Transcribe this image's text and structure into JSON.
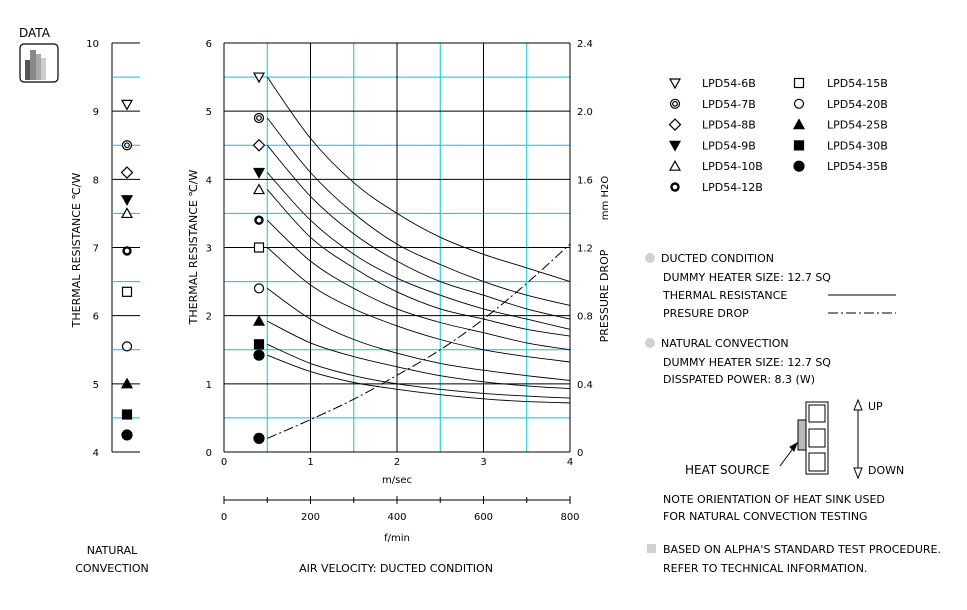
{
  "logo": {
    "label": "DATA"
  },
  "natural": {
    "footer_line1": "NATURAL",
    "footer_line2": "CONVECTION",
    "ylabel": "THERMAL  RESISTANCE  ℃/W",
    "y_ticks": [
      "4",
      "5",
      "6",
      "7",
      "8",
      "9",
      "10"
    ]
  },
  "main": {
    "ylabel_left": "THERMAL  RESISTANCE  ℃/W",
    "ylabel_right": "PRESSURE  DROP",
    "ylabel_right_unit": "mm H2O",
    "x_unit_ms": "m/sec",
    "x_unit_fmin": "f/min",
    "footer": "AIR VELOCITY:  DUCTED CONDITION",
    "y_left_ticks": [
      "0",
      "1",
      "2",
      "3",
      "4",
      "5",
      "6"
    ],
    "y_right_ticks": [
      "0",
      "0.4",
      "0.8",
      "1.2",
      "1.6",
      "2.0",
      "2.4"
    ],
    "x_ms_ticks": [
      "0",
      "1",
      "2",
      "3",
      "4"
    ],
    "x_fmin_ticks": [
      "0",
      "200",
      "400",
      "600",
      "800"
    ]
  },
  "legend": {
    "items": [
      {
        "label": "LPD54-6B",
        "marker": "triangle-down-open"
      },
      {
        "label": "LPD54-7B",
        "marker": "double-circle"
      },
      {
        "label": "LPD54-8B",
        "marker": "diamond-open"
      },
      {
        "label": "LPD54-9B",
        "marker": "triangle-down-filled"
      },
      {
        "label": "LPD54-10B",
        "marker": "triangle-up-open"
      },
      {
        "label": "LPD54-12B",
        "marker": "circle-thick"
      },
      {
        "label": "LPD54-15B",
        "marker": "square-open"
      },
      {
        "label": "LPD54-20B",
        "marker": "circle-open"
      },
      {
        "label": "LPD54-25B",
        "marker": "triangle-up-filled"
      },
      {
        "label": "LPD54-30B",
        "marker": "square-filled"
      },
      {
        "label": "LPD54-35B",
        "marker": "circle-filled"
      }
    ]
  },
  "notes": {
    "ducted_title": "DUCTED CONDITION",
    "ducted_heater": "DUMMY HEATER SIZE: 12.7 SQ",
    "thermal_resistance": "THERMAL RESISTANCE",
    "pressure_drop": "PRESURE DROP",
    "natural_title": "NATURAL CONVECTION",
    "natural_heater": "DUMMY HEATER SIZE: 12.7 SQ",
    "natural_power": "DISSPATED POWER: 8.3 (W)",
    "up": "UP",
    "down": "DOWN",
    "heat_source": "HEAT SOURCE",
    "orientation_line1": "NOTE ORIENTATION OF HEAT SINK USED",
    "orientation_line2": "FOR NATURAL CONVECTION TESTING",
    "footer_line1": "BASED ON ALPHA'S STANDARD TEST PROCEDURE.",
    "footer_line2": "REFER TO TECHNICAL INFORMATION."
  },
  "colors": {
    "grid_cyan": "#00c8d8",
    "grid_black": "#000000",
    "note_bullet": "#d0d0d0"
  },
  "chart_data": [
    {
      "type": "scatter",
      "title": "",
      "ylabel": "THERMAL  RESISTANCE  ℃/W",
      "xlabel": "",
      "ylim": [
        4,
        10
      ],
      "points": [
        {
          "series": "LPD54-6B",
          "y": 9.1
        },
        {
          "series": "LPD54-7B",
          "y": 8.5
        },
        {
          "series": "LPD54-8B",
          "y": 8.1
        },
        {
          "series": "LPD54-9B",
          "y": 7.7
        },
        {
          "series": "LPD54-10B",
          "y": 7.5
        },
        {
          "series": "LPD54-12B",
          "y": 6.95
        },
        {
          "series": "LPD54-15B",
          "y": 6.35
        },
        {
          "series": "LPD54-20B",
          "y": 5.55
        },
        {
          "series": "LPD54-25B",
          "y": 5.0
        },
        {
          "series": "LPD54-30B",
          "y": 4.55
        },
        {
          "series": "LPD54-35B",
          "y": 4.25
        }
      ]
    },
    {
      "type": "line",
      "title": "",
      "xlabel": "m/sec",
      "ylabel": "THERMAL  RESISTANCE  ℃/W",
      "ylabel_right": "PRESSURE  DROP  mm H2O",
      "xlim": [
        0,
        4
      ],
      "ylim": [
        0,
        6
      ],
      "ylim_right": [
        0,
        2.4
      ],
      "secondary_x": {
        "label": "f/min",
        "range": [
          0,
          800
        ]
      },
      "x": [
        0.5,
        1,
        1.5,
        2,
        2.5,
        3,
        3.5,
        4
      ],
      "series": [
        {
          "name": "LPD54-6B",
          "values": [
            5.5,
            4.6,
            3.95,
            3.5,
            3.15,
            2.9,
            2.7,
            2.5
          ]
        },
        {
          "name": "LPD54-7B",
          "values": [
            4.9,
            4.1,
            3.5,
            3.05,
            2.75,
            2.5,
            2.3,
            2.15
          ]
        },
        {
          "name": "LPD54-8B",
          "values": [
            4.5,
            3.75,
            3.2,
            2.8,
            2.5,
            2.3,
            2.1,
            1.95
          ]
        },
        {
          "name": "LPD54-9B",
          "values": [
            4.1,
            3.4,
            2.9,
            2.55,
            2.3,
            2.1,
            1.95,
            1.8
          ]
        },
        {
          "name": "LPD54-10B",
          "values": [
            3.85,
            3.15,
            2.7,
            2.35,
            2.1,
            1.95,
            1.8,
            1.7
          ]
        },
        {
          "name": "LPD54-12B",
          "values": [
            3.4,
            2.8,
            2.4,
            2.1,
            1.9,
            1.75,
            1.6,
            1.5
          ]
        },
        {
          "name": "LPD54-15B",
          "values": [
            3.0,
            2.45,
            2.1,
            1.85,
            1.65,
            1.5,
            1.4,
            1.32
          ]
        },
        {
          "name": "LPD54-20B",
          "values": [
            2.4,
            1.95,
            1.65,
            1.45,
            1.3,
            1.2,
            1.12,
            1.05
          ]
        },
        {
          "name": "LPD54-25B",
          "values": [
            1.92,
            1.6,
            1.4,
            1.25,
            1.12,
            1.03,
            0.97,
            0.93
          ]
        },
        {
          "name": "LPD54-30B",
          "values": [
            1.58,
            1.3,
            1.12,
            1.0,
            0.92,
            0.86,
            0.82,
            0.79
          ]
        },
        {
          "name": "LPD54-35B",
          "values": [
            1.42,
            1.18,
            1.02,
            0.92,
            0.84,
            0.78,
            0.74,
            0.72
          ]
        }
      ],
      "pressure_drop": {
        "name": "PRESURE DROP",
        "axis": "right",
        "x": [
          0.5,
          1,
          1.5,
          2,
          2.5,
          3,
          3.5,
          4
        ],
        "values": [
          0.08,
          0.19,
          0.31,
          0.45,
          0.6,
          0.78,
          0.99,
          1.22
        ]
      }
    }
  ]
}
